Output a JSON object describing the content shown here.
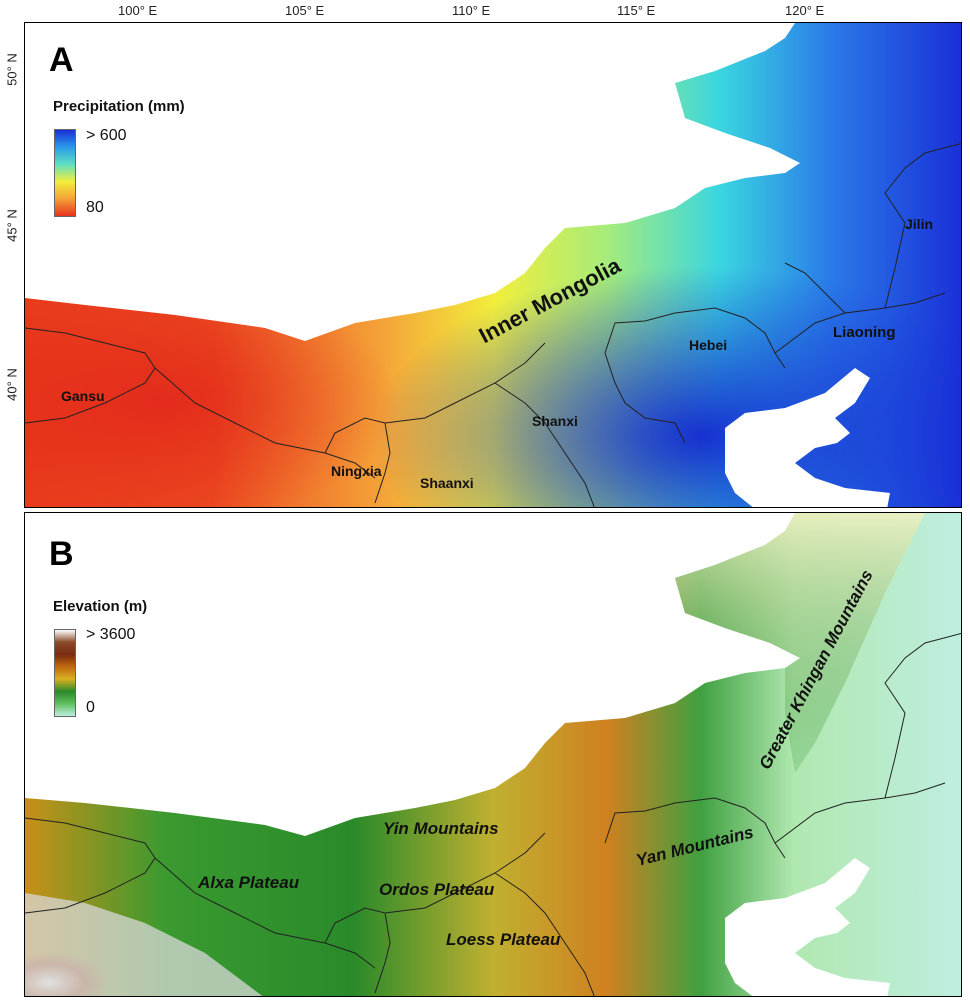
{
  "axes": {
    "lon_ticks": [
      "100° E",
      "105° E",
      "110° E",
      "115° E",
      "120° E"
    ],
    "lat_ticks": [
      "50° N",
      "45° N",
      "40° N"
    ]
  },
  "panel_a": {
    "letter": "A",
    "legend_title": "Precipitation (mm)",
    "legend_max": "> 600",
    "legend_min": "80",
    "labels": {
      "inner_mongolia": "Inner Mongolia",
      "gansu": "Gansu",
      "ningxia": "Ningxia",
      "shaanxi": "Shaanxi",
      "shanxi": "Shanxi",
      "hebei": "Hebei",
      "liaoning": "Liaoning",
      "jilin": "Jilin"
    },
    "colors": {
      "dry": "#e8321c",
      "mid": "#f5f03a",
      "wet": "#1a2fd8"
    }
  },
  "panel_b": {
    "letter": "B",
    "legend_title": "Elevation (m)",
    "legend_max": "> 3600",
    "legend_min": "0",
    "labels": {
      "greater_khingan": "Greater Khingan Mountains",
      "yin": "Yin Mountains",
      "yan": "Yan Mountains",
      "alxa": "Alxa Plateau",
      "ordos": "Ordos Plateau",
      "loess": "Loess Plateau"
    },
    "colors": {
      "low": "#bfeee0",
      "mid": "#2a8a2a",
      "high": "#7a3a1a",
      "peak": "#ffffff"
    }
  }
}
